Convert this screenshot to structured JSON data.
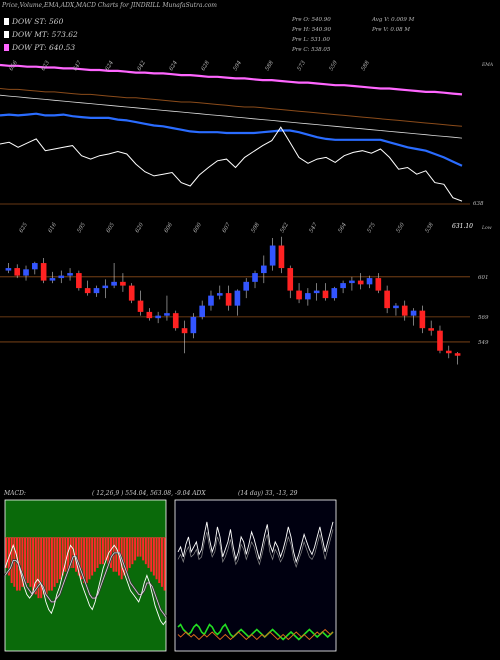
{
  "title": "Price,Volume,EMA,ADX,MACD Charts for JINDRILL MunafaSutra.com",
  "legend": [
    {
      "label": "DOW ST: 560",
      "color": "#ffffff"
    },
    {
      "label": "DOW MT: 573.62",
      "color": "#ffffff"
    },
    {
      "label": "DOW PT: 640.53",
      "color": "#ff66ff"
    }
  ],
  "stats": {
    "col1": [
      "Pre O: 540.90",
      "Pre H: 540.90",
      "Pre L: 531.00",
      "Pre C: 538.05"
    ],
    "col2": [
      "Avg V: 0.009 M",
      "Pre V: 0.08 M"
    ]
  },
  "ema_panel": {
    "top_labels": [
      "656",
      "623",
      "647",
      "624",
      "642",
      "624",
      "628",
      "594",
      "588",
      "573",
      "559",
      "588"
    ],
    "right_label_top": "EMA",
    "right_label_bottom": "638",
    "line_value_labels": [
      "631.10",
      "Low"
    ]
  },
  "price_panel": {
    "top_labels": [
      "625",
      "616",
      "595",
      "605",
      "620",
      "606",
      "600",
      "607",
      "598",
      "582",
      "547",
      "564",
      "575",
      "550",
      "538"
    ],
    "right_levels": [
      "601",
      "569",
      "549"
    ]
  },
  "macd": {
    "label": "MACD:",
    "params": "( 12,26,9 ) 554.04, 563.08, -9.04 ADX"
  },
  "adx": {
    "label": "(14  day) 33, -13, 29"
  },
  "colors": {
    "up": "#3355ff",
    "down": "#ff2222",
    "ema_fast": "#2a6cff",
    "pt": "#ff66ff",
    "macd_bg": "#0a6a0a"
  },
  "chart_data": [
    {
      "type": "candlestick",
      "name": "price",
      "ylim": [
        525,
        640
      ],
      "candles": [
        [
          606,
          612,
          604,
          608
        ],
        [
          608,
          611,
          600,
          602
        ],
        [
          602,
          610,
          598,
          607
        ],
        [
          607,
          613,
          603,
          612
        ],
        [
          612,
          616,
          596,
          598
        ],
        [
          598,
          605,
          596,
          600
        ],
        [
          600,
          606,
          596,
          602
        ],
        [
          602,
          608,
          598,
          604
        ],
        [
          604,
          606,
          590,
          592
        ],
        [
          592,
          598,
          586,
          588
        ],
        [
          588,
          594,
          585,
          592
        ],
        [
          592,
          599,
          584,
          594
        ],
        [
          594,
          612,
          592,
          597
        ],
        [
          597,
          604,
          589,
          594
        ],
        [
          594,
          596,
          580,
          582
        ],
        [
          582,
          590,
          570,
          573
        ],
        [
          573,
          576,
          566,
          568
        ],
        [
          568,
          573,
          564,
          570
        ],
        [
          570,
          586,
          566,
          572
        ],
        [
          572,
          574,
          558,
          560
        ],
        [
          560,
          566,
          540,
          556
        ],
        [
          556,
          572,
          552,
          569
        ],
        [
          569,
          582,
          567,
          578
        ],
        [
          578,
          590,
          574,
          586
        ],
        [
          586,
          594,
          583,
          588
        ],
        [
          588,
          594,
          574,
          578
        ],
        [
          578,
          591,
          570,
          590
        ],
        [
          590,
          600,
          584,
          597
        ],
        [
          597,
          606,
          592,
          604
        ],
        [
          604,
          618,
          596,
          610
        ],
        [
          610,
          632,
          606,
          626
        ],
        [
          626,
          633,
          604,
          608
        ],
        [
          608,
          610,
          584,
          590
        ],
        [
          590,
          596,
          580,
          583
        ],
        [
          583,
          592,
          578,
          588
        ],
        [
          588,
          596,
          582,
          590
        ],
        [
          590,
          596,
          582,
          584
        ],
        [
          584,
          593,
          582,
          592
        ],
        [
          592,
          598,
          588,
          596
        ],
        [
          596,
          601,
          590,
          598
        ],
        [
          598,
          604,
          591,
          595
        ],
        [
          595,
          602,
          592,
          600
        ],
        [
          600,
          604,
          588,
          590
        ],
        [
          590,
          594,
          572,
          576
        ],
        [
          576,
          580,
          570,
          578
        ],
        [
          578,
          582,
          566,
          570
        ],
        [
          570,
          576,
          562,
          574
        ],
        [
          574,
          578,
          556,
          560
        ],
        [
          560,
          566,
          554,
          558
        ],
        [
          558,
          562,
          540,
          542
        ],
        [
          542,
          546,
          536,
          540
        ],
        [
          540,
          541,
          531,
          538
        ]
      ]
    },
    {
      "type": "line",
      "name": "ema",
      "ylim": [
        525,
        700
      ],
      "series": [
        {
          "name": "ema_slow_white",
          "values": [
            664,
            663,
            662,
            661,
            660,
            659,
            658,
            657,
            656,
            655,
            654,
            653,
            652,
            651,
            650,
            649,
            648,
            647,
            646,
            645,
            644,
            643,
            642,
            641,
            640,
            639,
            638,
            637,
            636,
            635,
            634,
            633,
            632,
            631,
            630,
            629,
            628,
            627,
            626,
            625,
            624,
            623,
            622,
            621,
            620,
            619,
            618,
            617,
            616,
            615,
            614,
            613
          ]
        },
        {
          "name": "ema_brown",
          "values": [
            672,
            671,
            671,
            670,
            669,
            668,
            668,
            667,
            666,
            665,
            665,
            664,
            663,
            662,
            661,
            661,
            660,
            659,
            658,
            657,
            656,
            656,
            655,
            654,
            653,
            652,
            651,
            650,
            650,
            649,
            648,
            647,
            646,
            645,
            644,
            643,
            642,
            641,
            640,
            639,
            638,
            637,
            636,
            635,
            634,
            633,
            632,
            631,
            630,
            629,
            628,
            627
          ]
        },
        {
          "name": "pt_pink",
          "values": [
            700,
            699,
            699,
            698,
            698,
            697,
            697,
            696,
            696,
            695,
            694,
            694,
            693,
            693,
            692,
            691,
            691,
            690,
            690,
            689,
            688,
            688,
            687,
            686,
            686,
            685,
            684,
            684,
            683,
            682,
            682,
            681,
            680,
            679,
            679,
            678,
            677,
            676,
            676,
            675,
            674,
            673,
            672,
            672,
            671,
            670,
            669,
            668,
            668,
            667,
            666,
            665
          ]
        },
        {
          "name": "ema_fast_blue",
          "values": [
            640,
            641,
            640,
            641,
            642,
            640,
            640,
            641,
            639,
            638,
            637,
            637,
            637,
            635,
            634,
            632,
            630,
            628,
            627,
            625,
            623,
            621,
            620,
            620,
            620,
            619,
            619,
            619,
            619,
            620,
            621,
            622,
            622,
            620,
            617,
            614,
            612,
            611,
            611,
            611,
            611,
            611,
            611,
            608,
            605,
            602,
            600,
            598,
            594,
            590,
            585,
            580
          ]
        },
        {
          "name": "price_white",
          "values": [
            606,
            608,
            602,
            607,
            612,
            598,
            600,
            602,
            604,
            592,
            588,
            592,
            594,
            597,
            594,
            582,
            573,
            568,
            570,
            572,
            560,
            556,
            569,
            578,
            586,
            588,
            578,
            590,
            597,
            604,
            610,
            626,
            608,
            590,
            583,
            588,
            590,
            584,
            592,
            596,
            598,
            595,
            600,
            590,
            576,
            578,
            570,
            574,
            560,
            558,
            542,
            538
          ]
        }
      ]
    },
    {
      "type": "bar",
      "name": "macd",
      "ylim": [
        -30,
        10
      ],
      "values": [
        -8,
        -10,
        -12,
        -13,
        -14,
        -14,
        -13,
        -12,
        -12,
        -13,
        -14,
        -15,
        -16,
        -16,
        -15,
        -15,
        -14,
        -14,
        -13,
        -12,
        -11,
        -10,
        -9,
        -9,
        -8,
        -8,
        -9,
        -10,
        -11,
        -12,
        -12,
        -11,
        -10,
        -9,
        -8,
        -7,
        -7,
        -6,
        -7,
        -8,
        -9,
        -9,
        -10,
        -11,
        -10,
        -9,
        -8,
        -7,
        -6,
        -5,
        -5,
        -6,
        -7,
        -8,
        -9,
        -10,
        -11,
        -12,
        -13,
        -14
      ],
      "series": [
        {
          "name": "macd",
          "values": [
            -8,
            -6,
            -4,
            -2,
            -4,
            -7,
            -10,
            -13,
            -15,
            -16,
            -15,
            -12,
            -11,
            -12,
            -14,
            -17,
            -19,
            -20,
            -18,
            -15,
            -13,
            -10,
            -7,
            -4,
            -2,
            -3,
            -6,
            -9,
            -12,
            -14,
            -16,
            -18,
            -19,
            -17,
            -14,
            -11,
            -8,
            -6,
            -4,
            -3,
            -2,
            -3,
            -5,
            -8,
            -10,
            -12,
            -14,
            -15,
            -16,
            -17,
            -15,
            -12,
            -10,
            -12,
            -15,
            -18,
            -20,
            -22,
            -23,
            -22
          ]
        },
        {
          "name": "signal",
          "values": [
            -10,
            -9,
            -8,
            -6,
            -6,
            -7,
            -9,
            -11,
            -13,
            -14,
            -15,
            -14,
            -13,
            -12,
            -13,
            -15,
            -16,
            -17,
            -17,
            -16,
            -15,
            -13,
            -11,
            -9,
            -7,
            -5,
            -5,
            -7,
            -9,
            -11,
            -13,
            -15,
            -16,
            -16,
            -15,
            -13,
            -11,
            -9,
            -7,
            -5,
            -4,
            -4,
            -4,
            -6,
            -8,
            -10,
            -12,
            -13,
            -14,
            -15,
            -15,
            -14,
            -12,
            -12,
            -13,
            -15,
            -17,
            -19,
            -20,
            -21
          ]
        }
      ]
    },
    {
      "type": "line",
      "name": "adx",
      "ylim": [
        0,
        60
      ],
      "series": [
        {
          "name": "plus_di",
          "values": [
            38,
            40,
            36,
            41,
            44,
            38,
            40,
            42,
            37,
            39,
            45,
            50,
            43,
            38,
            41,
            48,
            44,
            36,
            39,
            42,
            47,
            40,
            35,
            38,
            44,
            42,
            37,
            41,
            46,
            43,
            39,
            35,
            40,
            45,
            49,
            41,
            38,
            42,
            40,
            36,
            39,
            43,
            48,
            44,
            38,
            34,
            37,
            41,
            45,
            42,
            39,
            37,
            40,
            44,
            48,
            43,
            38,
            42,
            46,
            50
          ]
        },
        {
          "name": "minus_di",
          "values": [
            35,
            37,
            34,
            38,
            40,
            36,
            37,
            39,
            35,
            36,
            42,
            46,
            40,
            36,
            38,
            44,
            41,
            34,
            36,
            39,
            43,
            37,
            33,
            35,
            41,
            39,
            35,
            38,
            42,
            40,
            36,
            33,
            37,
            42,
            45,
            38,
            35,
            39,
            37,
            34,
            36,
            40,
            44,
            41,
            35,
            32,
            35,
            38,
            42,
            39,
            36,
            35,
            37,
            41,
            45,
            40,
            35,
            39,
            43,
            47
          ]
        },
        {
          "name": "adx",
          "values": [
            8,
            9,
            7,
            6,
            5,
            6,
            8,
            9,
            8,
            6,
            5,
            7,
            9,
            8,
            6,
            5,
            6,
            8,
            9,
            7,
            5,
            4,
            5,
            6,
            7,
            6,
            5,
            4,
            5,
            6,
            7,
            6,
            5,
            4,
            5,
            6,
            7,
            6,
            5,
            4,
            3,
            4,
            5,
            6,
            5,
            4,
            3,
            4,
            5,
            6,
            7,
            6,
            5,
            4,
            5,
            6,
            5,
            4,
            5,
            6
          ]
        },
        {
          "name": "di_orange",
          "values": [
            5,
            4,
            5,
            6,
            5,
            4,
            5,
            4,
            3,
            4,
            5,
            4,
            5,
            6,
            5,
            4,
            3,
            4,
            5,
            4,
            3,
            4,
            5,
            6,
            5,
            4,
            3,
            4,
            5,
            4,
            3,
            4,
            5,
            4,
            5,
            6,
            5,
            4,
            3,
            4,
            5,
            4,
            3,
            4,
            5,
            6,
            5,
            4,
            5,
            4,
            3,
            4,
            5,
            6,
            5,
            6,
            7,
            6,
            5,
            6
          ]
        }
      ]
    }
  ]
}
